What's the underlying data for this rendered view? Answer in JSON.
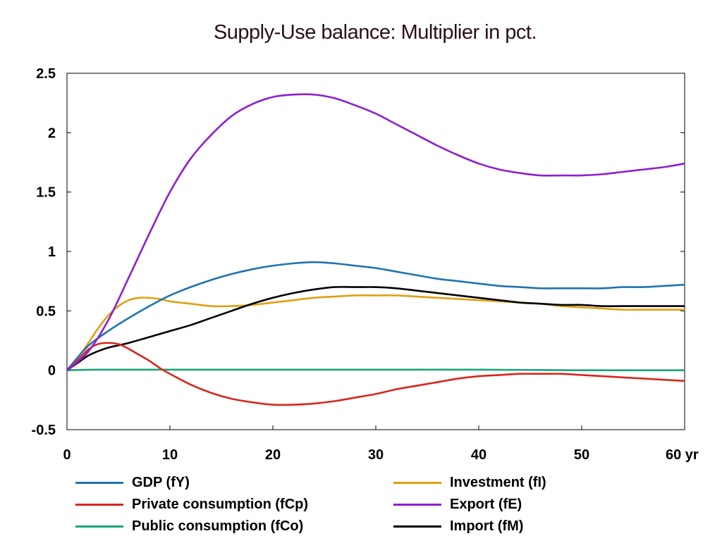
{
  "chart_data": {
    "type": "line",
    "title": "Supply-Use balance: Multiplier in pct.",
    "xlim": [
      0,
      60
    ],
    "ylim": [
      -0.5,
      2.5
    ],
    "x_ticks": [
      "0",
      "10",
      "20",
      "30",
      "40",
      "50",
      "60 yr"
    ],
    "y_ticks": [
      "2.5",
      "2",
      "1.5",
      "1",
      "0.5",
      "0",
      "-0.5"
    ],
    "grid": false,
    "legend_position": "bottom",
    "series": [
      {
        "name": "GDP (fY)",
        "color": "#1f74b0",
        "x": [
          0,
          2,
          4,
          6,
          8,
          10,
          12,
          14,
          16,
          18,
          20,
          22,
          24,
          26,
          28,
          30,
          32,
          34,
          36,
          38,
          40,
          42,
          44,
          46,
          48,
          50,
          52,
          54,
          56,
          58,
          60
        ],
        "y": [
          0,
          0.2,
          0.33,
          0.44,
          0.54,
          0.63,
          0.7,
          0.76,
          0.81,
          0.85,
          0.88,
          0.9,
          0.91,
          0.9,
          0.88,
          0.86,
          0.83,
          0.8,
          0.77,
          0.75,
          0.73,
          0.71,
          0.7,
          0.69,
          0.69,
          0.69,
          0.69,
          0.7,
          0.7,
          0.71,
          0.72
        ]
      },
      {
        "name": "Private consumption (fCp)",
        "color": "#d9261c",
        "x": [
          0,
          1,
          2,
          3,
          4,
          5,
          6,
          7,
          8,
          9,
          10,
          12,
          14,
          16,
          18,
          20,
          22,
          24,
          26,
          28,
          30,
          32,
          34,
          36,
          38,
          40,
          42,
          44,
          46,
          48,
          50,
          52,
          54,
          56,
          58,
          60
        ],
        "y": [
          0,
          0.08,
          0.17,
          0.22,
          0.23,
          0.22,
          0.18,
          0.13,
          0.08,
          0.02,
          -0.03,
          -0.12,
          -0.19,
          -0.24,
          -0.27,
          -0.29,
          -0.29,
          -0.28,
          -0.26,
          -0.23,
          -0.2,
          -0.16,
          -0.13,
          -0.1,
          -0.07,
          -0.05,
          -0.04,
          -0.03,
          -0.03,
          -0.03,
          -0.04,
          -0.05,
          -0.06,
          -0.07,
          -0.08,
          -0.09
        ]
      },
      {
        "name": "Public consumption (fCo)",
        "color": "#1aa37a",
        "x": [
          0,
          3,
          10,
          20,
          30,
          40,
          50,
          60
        ],
        "y": [
          0,
          0.005,
          0.005,
          0.005,
          0.005,
          0.005,
          0.0,
          0.0
        ]
      },
      {
        "name": "Investment (fI)",
        "color": "#e0a010",
        "x": [
          0,
          1,
          2,
          3,
          4,
          5,
          6,
          7,
          8,
          9,
          10,
          12,
          14,
          16,
          18,
          20,
          22,
          24,
          26,
          28,
          30,
          32,
          34,
          36,
          38,
          40,
          42,
          44,
          46,
          48,
          50,
          52,
          54,
          56,
          58,
          60
        ],
        "y": [
          0,
          0.1,
          0.22,
          0.35,
          0.46,
          0.54,
          0.59,
          0.61,
          0.61,
          0.6,
          0.58,
          0.56,
          0.54,
          0.54,
          0.55,
          0.57,
          0.59,
          0.61,
          0.62,
          0.63,
          0.63,
          0.63,
          0.62,
          0.61,
          0.6,
          0.59,
          0.58,
          0.57,
          0.56,
          0.54,
          0.53,
          0.52,
          0.51,
          0.51,
          0.51,
          0.51
        ]
      },
      {
        "name": "Export (fE)",
        "color": "#8e1ed3",
        "x": [
          0,
          2,
          4,
          6,
          8,
          10,
          12,
          14,
          16,
          18,
          20,
          22,
          24,
          26,
          28,
          30,
          32,
          34,
          36,
          38,
          40,
          42,
          44,
          46,
          48,
          50,
          52,
          54,
          56,
          58,
          60
        ],
        "y": [
          0,
          0.15,
          0.42,
          0.78,
          1.15,
          1.5,
          1.78,
          1.98,
          2.14,
          2.24,
          2.3,
          2.32,
          2.32,
          2.29,
          2.23,
          2.16,
          2.07,
          1.98,
          1.89,
          1.81,
          1.74,
          1.69,
          1.66,
          1.64,
          1.64,
          1.64,
          1.65,
          1.67,
          1.69,
          1.71,
          1.74
        ]
      },
      {
        "name": "Import (fM)",
        "color": "#000000",
        "x": [
          0,
          1,
          2,
          3,
          4,
          5,
          6,
          8,
          10,
          12,
          14,
          16,
          18,
          20,
          22,
          24,
          26,
          28,
          30,
          32,
          34,
          36,
          38,
          40,
          42,
          44,
          46,
          48,
          50,
          52,
          54,
          56,
          58,
          60
        ],
        "y": [
          0,
          0.06,
          0.12,
          0.16,
          0.19,
          0.21,
          0.23,
          0.28,
          0.33,
          0.38,
          0.44,
          0.5,
          0.56,
          0.61,
          0.65,
          0.68,
          0.7,
          0.7,
          0.7,
          0.69,
          0.67,
          0.65,
          0.63,
          0.61,
          0.59,
          0.57,
          0.56,
          0.55,
          0.55,
          0.54,
          0.54,
          0.54,
          0.54,
          0.54
        ]
      }
    ]
  }
}
